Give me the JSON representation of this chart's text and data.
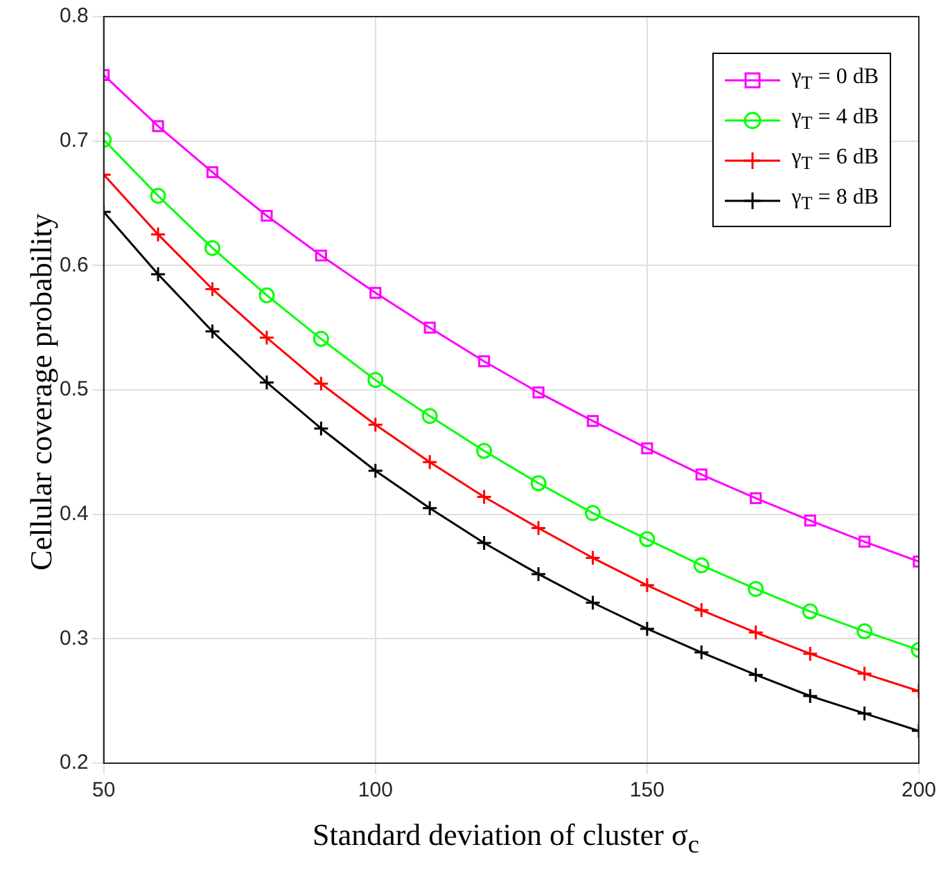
{
  "chart_data": {
    "type": "line",
    "xlabel": "Standard deviation of cluster σ$_{c}$",
    "ylabel": "Cellular coverage probability",
    "x": [
      50,
      60,
      70,
      80,
      90,
      100,
      110,
      120,
      130,
      140,
      150,
      160,
      170,
      180,
      190,
      200
    ],
    "xlim": [
      50,
      200
    ],
    "xticks": [
      50,
      100,
      150,
      200
    ],
    "ylim": [
      0.2,
      0.8
    ],
    "yticks": [
      0.2,
      0.3,
      0.4,
      0.5,
      0.6,
      0.7,
      0.8
    ],
    "grid": true,
    "legend": "top right",
    "series": [
      {
        "name": "γ$_{T}$ = 0 dB",
        "color": "#ff00ff",
        "marker": "square",
        "values": [
          0.753,
          0.712,
          0.675,
          0.64,
          0.608,
          0.578,
          0.55,
          0.523,
          0.498,
          0.475,
          0.453,
          0.432,
          0.413,
          0.395,
          0.378,
          0.362
        ]
      },
      {
        "name": "γ$_{T}$ = 4 dB",
        "color": "#00ff00",
        "marker": "circle",
        "values": [
          0.701,
          0.656,
          0.614,
          0.576,
          0.541,
          0.508,
          0.479,
          0.451,
          0.425,
          0.401,
          0.38,
          0.359,
          0.34,
          0.322,
          0.306,
          0.291
        ]
      },
      {
        "name": "γ$_{T}$ = 6 dB",
        "color": "#ff0000",
        "marker": "cross",
        "values": [
          0.673,
          0.625,
          0.581,
          0.542,
          0.505,
          0.472,
          0.442,
          0.414,
          0.389,
          0.365,
          0.343,
          0.323,
          0.305,
          0.288,
          0.272,
          0.258
        ]
      },
      {
        "name": "γ$_{T}$ = 8 dB",
        "color": "#000000",
        "marker": "cross",
        "values": [
          0.643,
          0.593,
          0.547,
          0.506,
          0.469,
          0.435,
          0.405,
          0.377,
          0.352,
          0.329,
          0.308,
          0.289,
          0.271,
          0.254,
          0.24,
          0.226
        ]
      }
    ]
  }
}
